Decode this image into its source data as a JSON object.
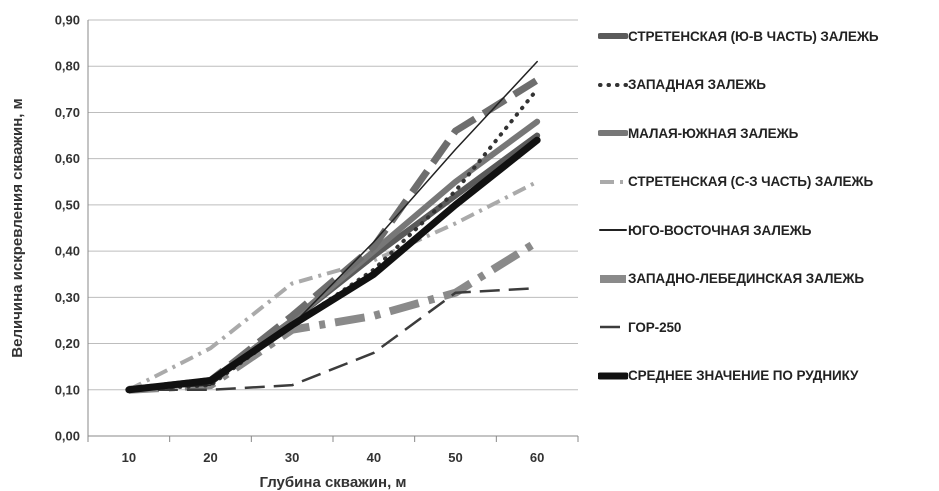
{
  "chart_data": {
    "type": "line",
    "title": "",
    "xlabel": "Глубина скважин, м",
    "ylabel": "Величина искревления скважин, м",
    "x": [
      10,
      20,
      30,
      40,
      50,
      60
    ],
    "x_tick_labels": [
      "10",
      "20",
      "30",
      "40",
      "50",
      "60"
    ],
    "ylim": [
      0,
      0.9
    ],
    "y_tick_labels": [
      "0,00",
      "0,10",
      "0,20",
      "0,30",
      "0,40",
      "0,50",
      "0,60",
      "0,70",
      "0,80",
      "0,90"
    ],
    "y_ticks": [
      0,
      0.1,
      0.2,
      0.3,
      0.4,
      0.5,
      0.6,
      0.7,
      0.8,
      0.9
    ],
    "grid": "horizontal",
    "legend_position": "right",
    "series": [
      {
        "name": "СТРЕТЕНСКАЯ (Ю-В ЧАСТЬ) ЗАЛЕЖЬ",
        "values": [
          0.1,
          0.12,
          0.25,
          0.39,
          0.52,
          0.65
        ],
        "color": "#5a5a5a",
        "style": "solid-thick"
      },
      {
        "name": "ЗАПАДНАЯ ЗАЛЕЖЬ",
        "values": [
          0.1,
          0.11,
          0.24,
          0.36,
          0.53,
          0.75
        ],
        "color": "#333333",
        "style": "dotted"
      },
      {
        "name": "МАЛАЯ-ЮЖНАЯ ЗАЛЕЖЬ",
        "values": [
          0.1,
          0.12,
          0.25,
          0.4,
          0.55,
          0.68
        ],
        "color": "#777777",
        "style": "solid-thick"
      },
      {
        "name": "СТРЕТЕНСКАЯ (С-З ЧАСТЬ) ЗАЛЕЖЬ",
        "values": [
          0.1,
          0.19,
          0.33,
          0.38,
          0.46,
          0.55
        ],
        "color": "#aaaaaa",
        "style": "dash-dot"
      },
      {
        "name": "ЮГО-ВОСТОЧНАЯ ЗАЛЕЖЬ",
        "values": [
          0.1,
          0.11,
          0.24,
          0.42,
          0.62,
          0.81
        ],
        "color": "#222222",
        "style": "thin"
      },
      {
        "name": "ЗАПАДНО-ЛЕБЕДИНСКАЯ ЗАЛЕЖЬ",
        "values": [
          0.1,
          0.11,
          0.23,
          0.26,
          0.31,
          0.42
        ],
        "color": "#8a8a8a",
        "style": "dash-dot-thick"
      },
      {
        "name": "ГОР-250",
        "values": [
          0.1,
          0.1,
          0.11,
          0.18,
          0.31,
          0.32
        ],
        "color": "#3c3c3c",
        "style": "long-dash"
      },
      {
        "name": "СРЕДНЕЕ ЗНАЧЕНИЕ ПО РУДНИКУ",
        "values": [
          0.1,
          0.12,
          0.24,
          0.35,
          0.5,
          0.64
        ],
        "color": "#111111",
        "style": "solid-extra-thick"
      },
      {
        "name": "",
        "values": [
          0.1,
          0.12,
          0.26,
          0.41,
          0.66,
          0.77
        ],
        "color": "#6e6e6e",
        "style": "dash-thick",
        "legend": false
      }
    ]
  }
}
